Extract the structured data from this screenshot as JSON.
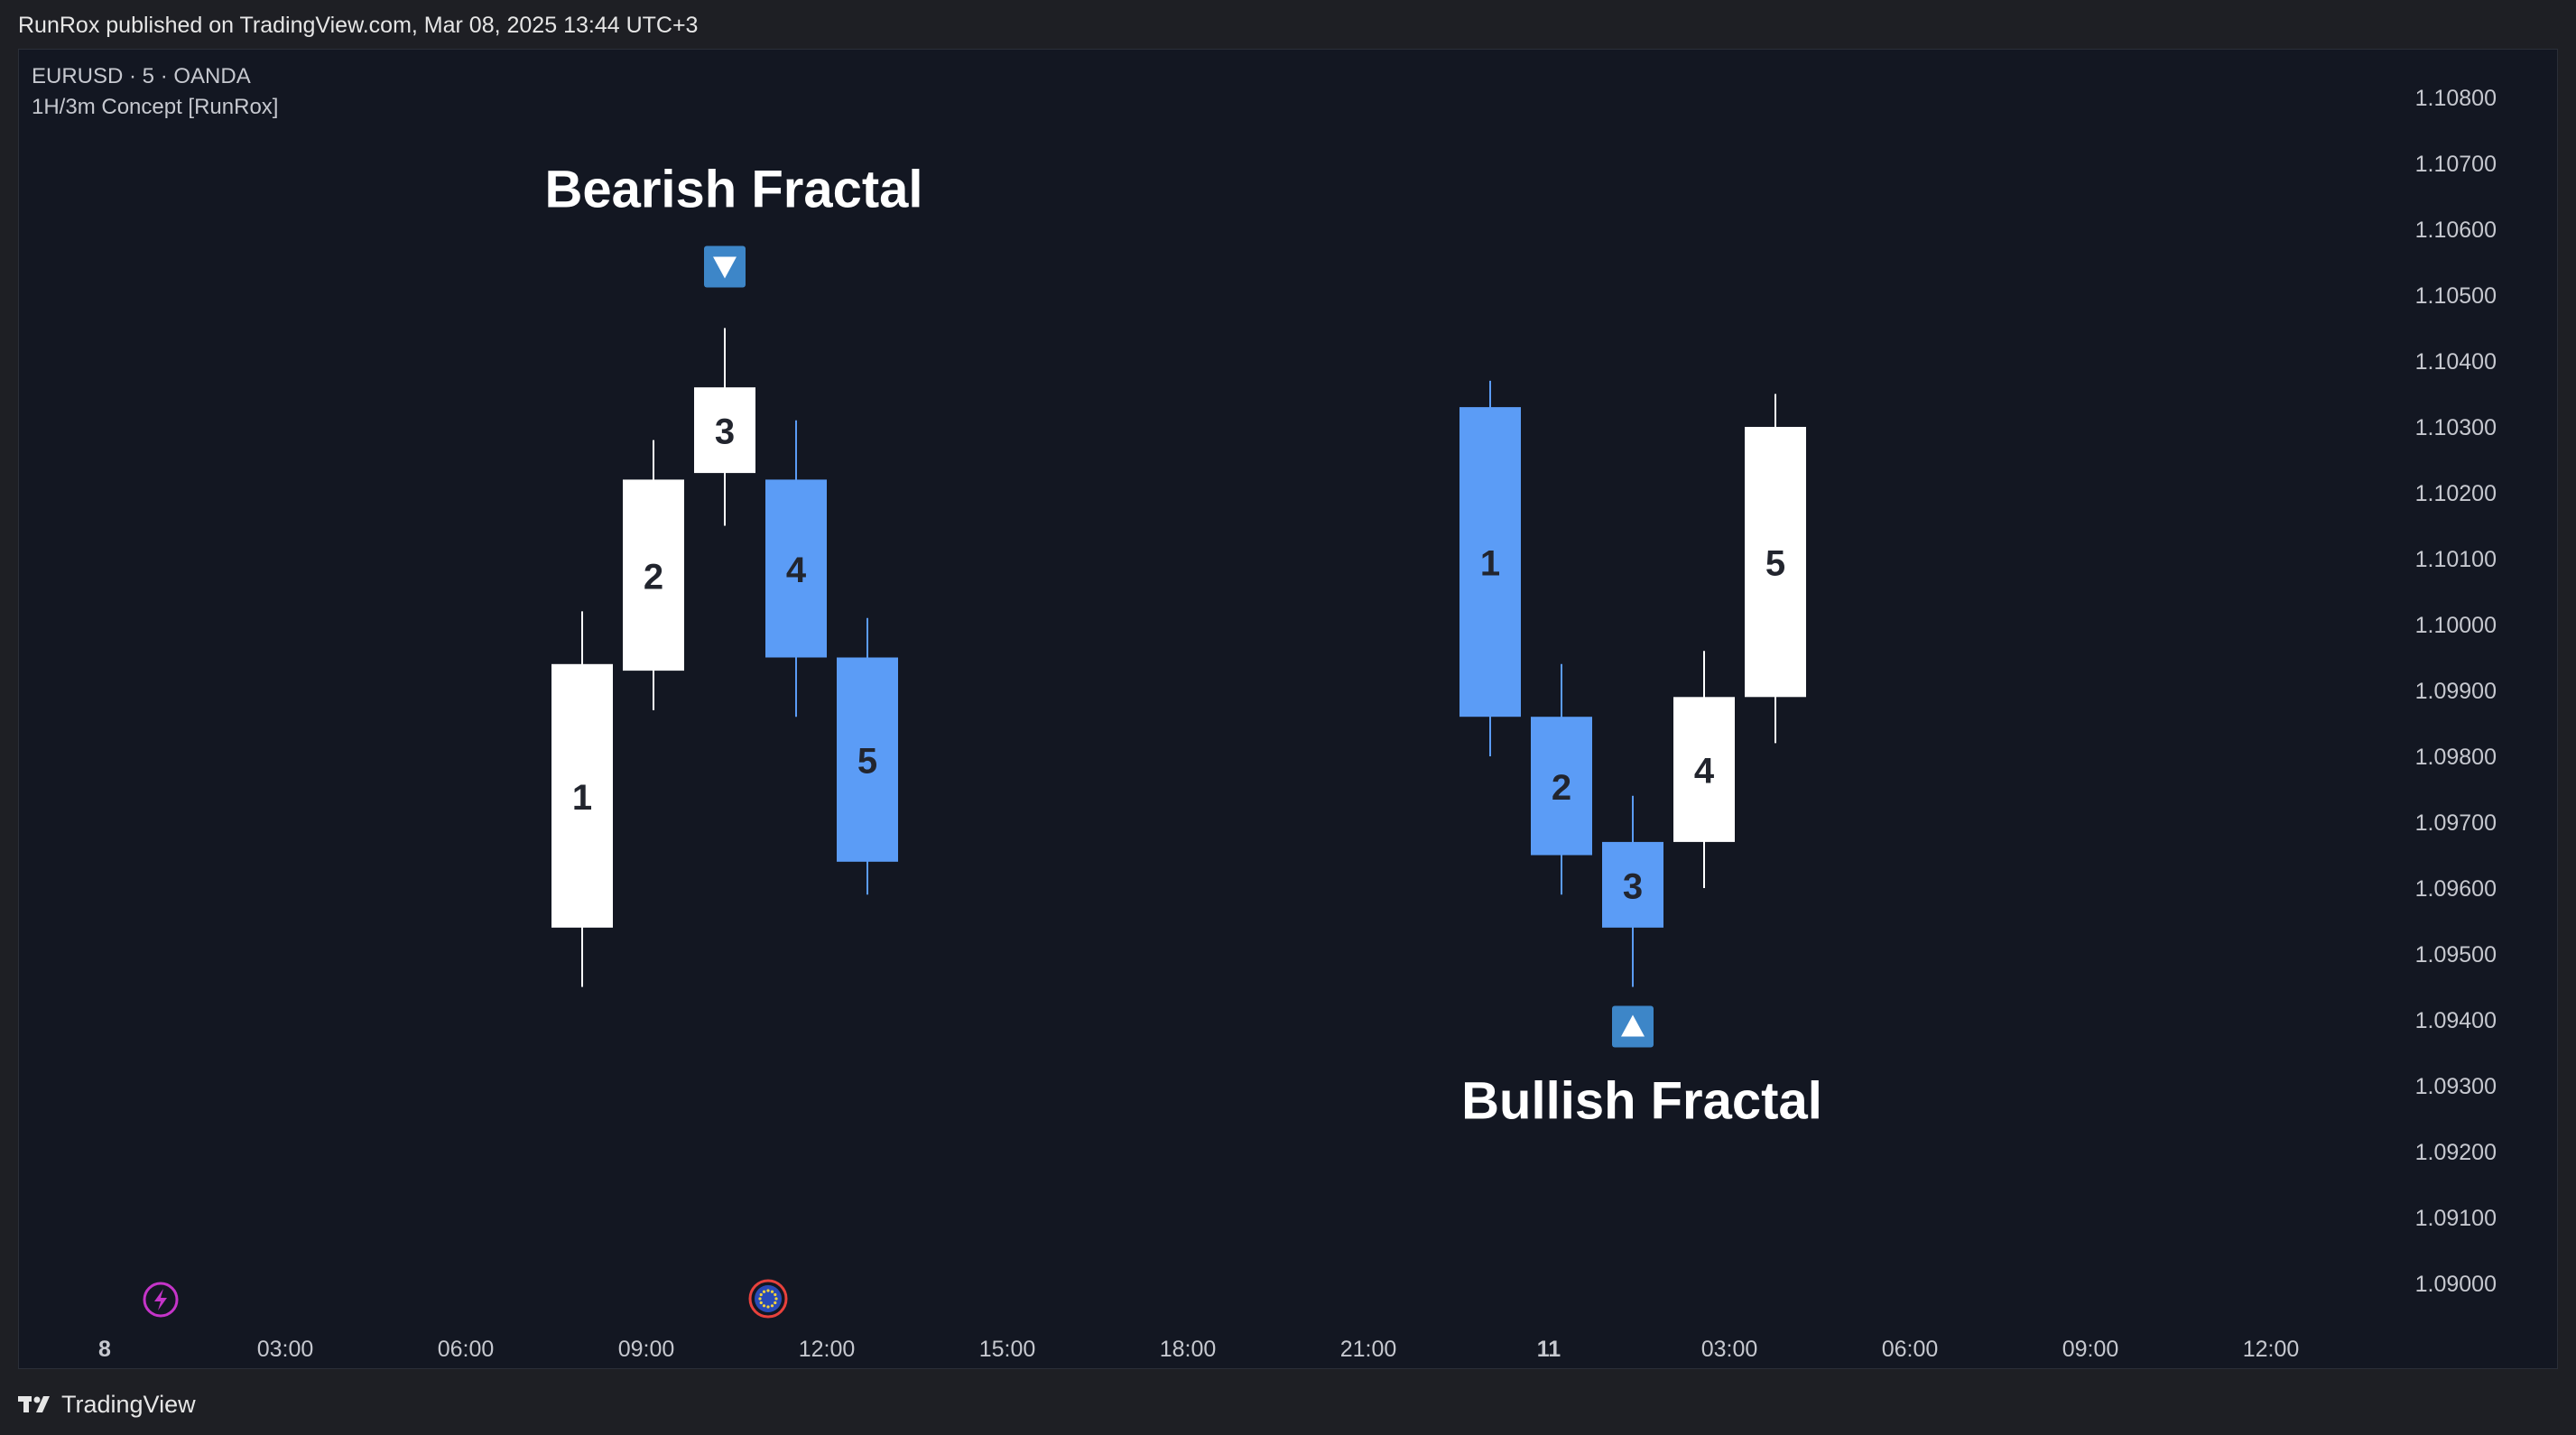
{
  "header": {
    "published_text": "RunRox published on TradingView.com, Mar 08, 2025 13:44 UTC+3"
  },
  "legend": {
    "symbol": "EURUSD · 5 · OANDA",
    "indicator": "1H/3m Concept [RunRox]"
  },
  "footer": {
    "brand": "TradingView"
  },
  "colors": {
    "background": "#131722",
    "bull_candle": "#ffffff",
    "bear_candle": "#5b9cf6",
    "marker": "#3d86c8",
    "text": "#ffffff",
    "axis_text": "#c6c8cf",
    "event_icon": "#c534c9"
  },
  "chart_data": {
    "type": "candlestick",
    "ylim": [
      1.0896,
      1.1089
    ],
    "y_ticks": [
      "1.10800",
      "1.10700",
      "1.10600",
      "1.10500",
      "1.10400",
      "1.10300",
      "1.10200",
      "1.10100",
      "1.10000",
      "1.09900",
      "1.09800",
      "1.09700",
      "1.09600",
      "1.09500",
      "1.09400",
      "1.09300",
      "1.09200",
      "1.09100",
      "1.09000"
    ],
    "x_ticks": [
      {
        "label": "8",
        "bold": true
      },
      {
        "label": "03:00",
        "bold": false
      },
      {
        "label": "06:00",
        "bold": false
      },
      {
        "label": "09:00",
        "bold": false
      },
      {
        "label": "12:00",
        "bold": false
      },
      {
        "label": "15:00",
        "bold": false
      },
      {
        "label": "18:00",
        "bold": false
      },
      {
        "label": "21:00",
        "bold": false
      },
      {
        "label": "11",
        "bold": true
      },
      {
        "label": "03:00",
        "bold": false
      },
      {
        "label": "06:00",
        "bold": false
      },
      {
        "label": "09:00",
        "bold": false
      },
      {
        "label": "12:00",
        "bold": false
      }
    ],
    "groups": [
      {
        "title": "Bearish Fractal",
        "marker": "down",
        "candles": [
          {
            "label": "1",
            "open": 1.0954,
            "high": 1.1002,
            "low": 1.0945,
            "close": 1.0994
          },
          {
            "label": "2",
            "open": 1.0993,
            "high": 1.1028,
            "low": 1.0987,
            "close": 1.1022
          },
          {
            "label": "3",
            "open": 1.1023,
            "high": 1.1045,
            "low": 1.1015,
            "close": 1.1036
          },
          {
            "label": "4",
            "open": 1.1022,
            "high": 1.1031,
            "low": 1.0986,
            "close": 1.0995
          },
          {
            "label": "5",
            "open": 1.0995,
            "high": 1.1001,
            "low": 1.0959,
            "close": 1.0964
          }
        ]
      },
      {
        "title": "Bullish Fractal",
        "marker": "up",
        "candles": [
          {
            "label": "1",
            "open": 1.1033,
            "high": 1.1037,
            "low": 1.098,
            "close": 1.0986
          },
          {
            "label": "2",
            "open": 1.0986,
            "high": 1.0994,
            "low": 1.0959,
            "close": 1.0965
          },
          {
            "label": "3",
            "open": 1.0967,
            "high": 1.0974,
            "low": 1.0945,
            "close": 1.0954
          },
          {
            "label": "4",
            "open": 1.0967,
            "high": 1.0996,
            "low": 1.096,
            "close": 1.0989
          },
          {
            "label": "5",
            "open": 1.0989,
            "high": 1.1035,
            "low": 1.0982,
            "close": 1.103
          }
        ]
      }
    ],
    "events": [
      {
        "icon": "lightning-icon"
      },
      {
        "icon": "eu-flag-icon"
      }
    ]
  }
}
